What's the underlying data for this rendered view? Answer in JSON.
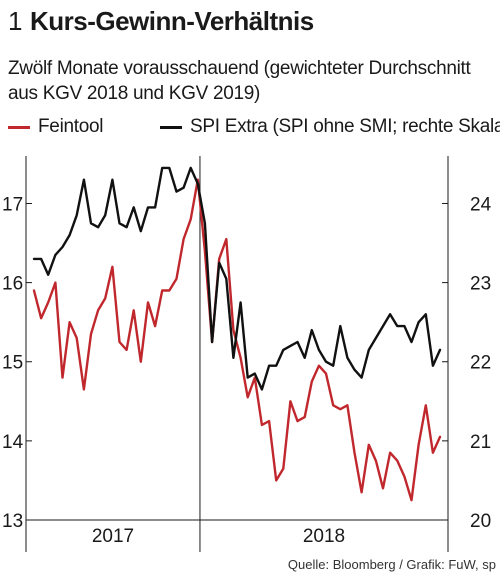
{
  "header": {
    "number": "1",
    "title": "Kurs-Gewinn-Verhältnis",
    "subtitle": "Zwölf Monate vorausschauend (gewichteter Durchschnitt aus KGV 2018 und KGV  2019)"
  },
  "source": "Quelle: Bloomberg / Grafik: FuW, sp",
  "chart_data": {
    "type": "line",
    "x_labels": [
      "2017",
      "2018"
    ],
    "left_axis": {
      "ticks": [
        "13",
        "14",
        "15",
        "16",
        "17"
      ],
      "range": [
        13,
        17.6
      ]
    },
    "right_axis": {
      "ticks": [
        "20",
        "21",
        "22",
        "23",
        "24"
      ],
      "range": [
        20,
        24.6
      ]
    },
    "series": [
      {
        "name": "Feintool",
        "axis": "left",
        "color": "#c0282d",
        "values": [
          15.9,
          15.55,
          15.75,
          16.0,
          14.8,
          15.5,
          15.3,
          14.65,
          15.35,
          15.65,
          15.8,
          16.2,
          15.25,
          15.15,
          15.65,
          15.0,
          15.75,
          15.45,
          15.9,
          15.9,
          16.05,
          16.55,
          16.8,
          17.3,
          16.4,
          15.25,
          16.3,
          16.55,
          15.4,
          15.05,
          14.55,
          14.8,
          14.2,
          14.25,
          13.5,
          13.65,
          14.5,
          14.25,
          14.3,
          14.75,
          14.95,
          14.85,
          14.45,
          14.4,
          14.45,
          13.85,
          13.35,
          13.95,
          13.75,
          13.4,
          13.85,
          13.75,
          13.55,
          13.25,
          13.95,
          14.45,
          13.85,
          14.05
        ]
      },
      {
        "name": "SPI Extra (SPI ohne SMI; rechte Skala)",
        "axis": "right",
        "color": "#111111",
        "values": [
          23.3,
          23.3,
          23.1,
          23.35,
          23.45,
          23.6,
          23.85,
          24.3,
          23.75,
          23.7,
          23.85,
          24.3,
          23.75,
          23.7,
          23.95,
          23.65,
          23.95,
          23.95,
          24.45,
          24.45,
          24.15,
          24.2,
          24.45,
          24.25,
          23.75,
          22.25,
          23.25,
          23.05,
          22.05,
          22.75,
          21.8,
          21.85,
          21.65,
          21.95,
          21.95,
          22.15,
          22.2,
          22.25,
          22.05,
          22.4,
          22.15,
          22.0,
          21.95,
          22.45,
          22.05,
          21.9,
          21.8,
          22.15,
          22.3,
          22.45,
          22.6,
          22.45,
          22.45,
          22.25,
          22.5,
          22.6,
          21.95,
          22.15
        ]
      }
    ]
  }
}
